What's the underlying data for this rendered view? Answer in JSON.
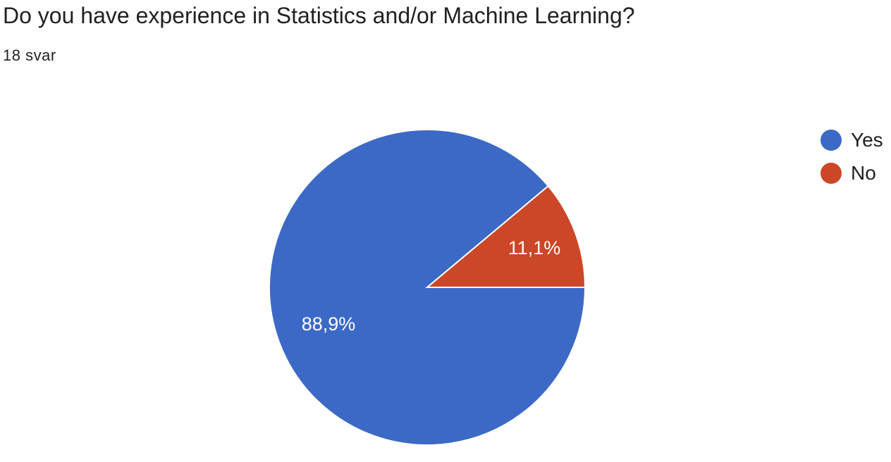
{
  "question": {
    "title": "Do you have experience in Statistics and/or Machine Learning?",
    "responses": "18 svar"
  },
  "chart_data": {
    "type": "pie",
    "categories": [
      "Yes",
      "No"
    ],
    "values": [
      88.9,
      11.1
    ],
    "labels": [
      "88,9%",
      "11,1%"
    ],
    "colors": [
      "#3c69c6",
      "#cb4728"
    ],
    "label_color": "#ffffff",
    "legend_position": "top-right",
    "start_angle_deg": 0,
    "direction": "counterclockwise-from-right for second slice"
  }
}
